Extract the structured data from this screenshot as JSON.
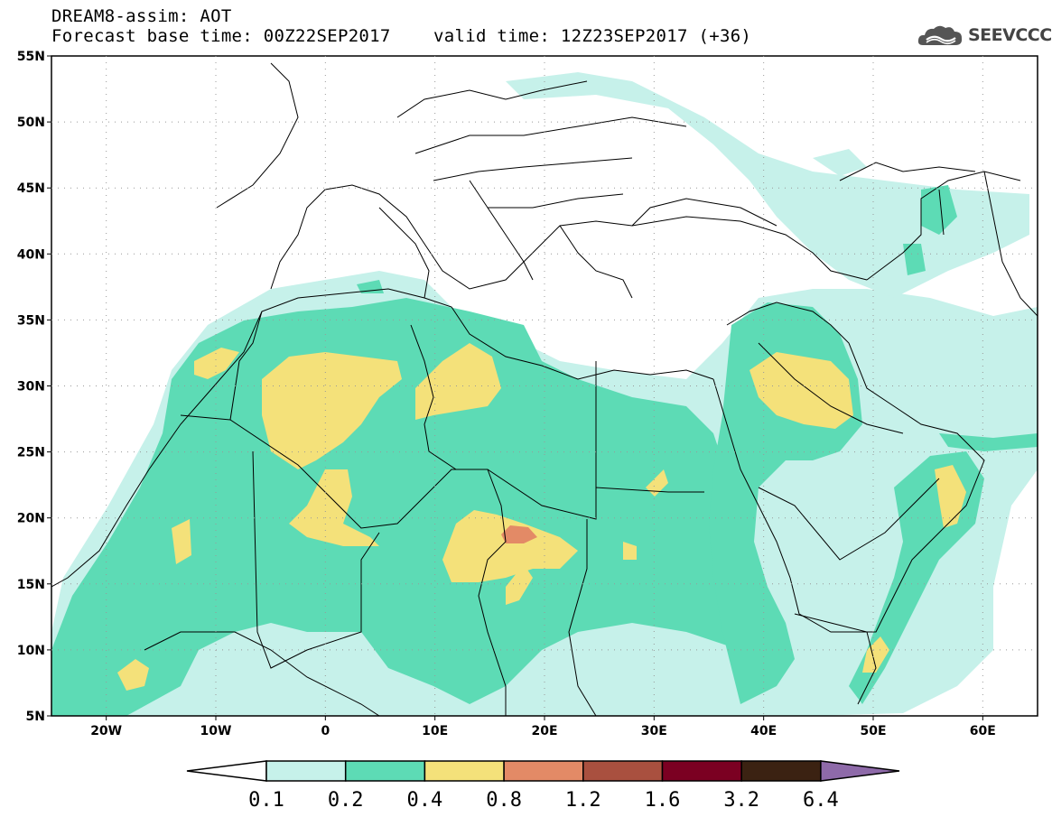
{
  "header": {
    "title": "DREAM8-assim: AOT",
    "base_time": "Forecast base time: 00Z22SEP2017",
    "valid_time": "valid time: 12Z23SEP2017 (+36)"
  },
  "logo": {
    "text": "SEEVCCC",
    "icon": "cloud-icon"
  },
  "map": {
    "lat_labels": [
      "55N",
      "50N",
      "45N",
      "40N",
      "35N",
      "30N",
      "25N",
      "20N",
      "15N",
      "10N",
      "5N"
    ],
    "lon_labels": [
      "20W",
      "10W",
      "0",
      "10E",
      "20E",
      "30E",
      "40E",
      "50E",
      "60E"
    ],
    "lat_range": [
      5,
      55
    ],
    "lon_range": [
      -25,
      65
    ]
  },
  "colorbar": {
    "labels": [
      "0.1",
      "0.2",
      "0.4",
      "0.8",
      "1.2",
      "1.6",
      "3.2",
      "6.4"
    ],
    "colors": [
      "#ffffff",
      "#c6f1ea",
      "#5ddbb5",
      "#f4e17a",
      "#e38a66",
      "#a9503f",
      "#7b0022",
      "#3b2212",
      "#8e6aa9"
    ]
  }
}
